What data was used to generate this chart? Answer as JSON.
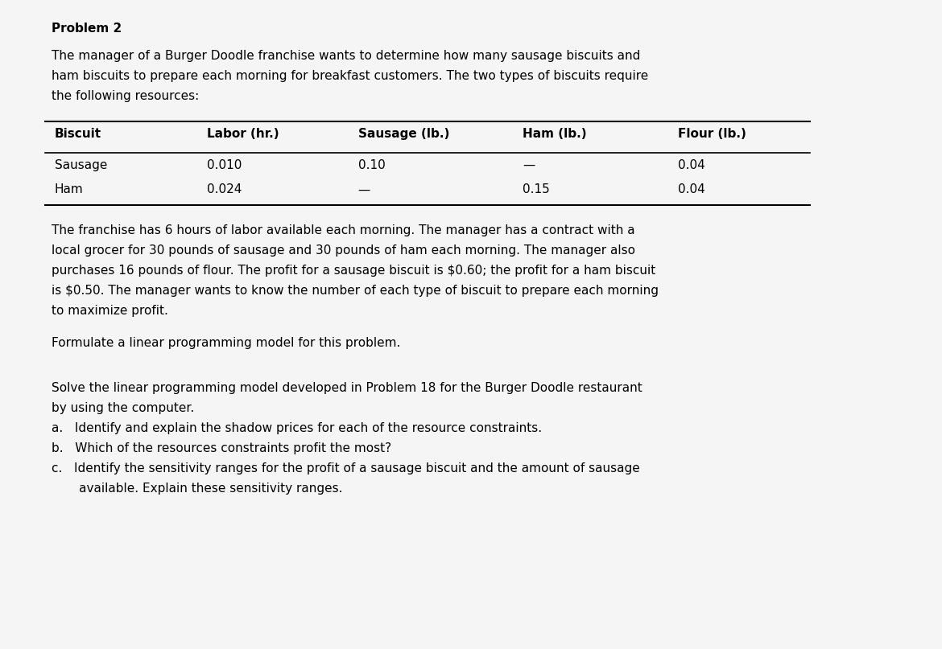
{
  "background_color": "#f5f5f5",
  "text_color": "#000000",
  "title": "Problem 2",
  "paragraph1": "The manager of a Burger Doodle franchise wants to determine how many sausage biscuits and\nham biscuits to prepare each morning for breakfast customers. The two types of biscuits require\nthe following resources:",
  "table_headers": [
    "Biscuit",
    "Labor (hr.)",
    "Sausage (lb.)",
    "Ham (lb.)",
    "Flour (lb.)"
  ],
  "table_rows": [
    [
      "Sausage",
      "0.010",
      "0.10",
      "—",
      "0.04"
    ],
    [
      "Ham",
      "0.024",
      "—",
      "0.15",
      "0.04"
    ]
  ],
  "paragraph2": "The franchise has 6 hours of labor available each morning. The manager has a contract with a\nlocal grocer for 30 pounds of sausage and 30 pounds of ham each morning. The manager also\npurchases 16 pounds of flour. The profit for a sausage biscuit is $0.60; the profit for a ham biscuit\nis $0.50. The manager wants to know the number of each type of biscuit to prepare each morning\nto maximize profit.",
  "paragraph3": "Formulate a linear programming model for this problem.",
  "paragraph4": "Solve the linear programming model developed in Problem 18 for the Burger Doodle restaurant\nby using the computer.",
  "list_items": [
    "a.   Identify and explain the shadow prices for each of the resource constraints.",
    "b.   Which of the resources constraints profit the most?",
    "c.   Identify the sensitivity ranges for the profit of a sausage biscuit and the amount of sausage\n       available. Explain these sensitivity ranges."
  ],
  "font_size_title": 11,
  "font_size_body": 11,
  "font_family": "DejaVu Sans"
}
